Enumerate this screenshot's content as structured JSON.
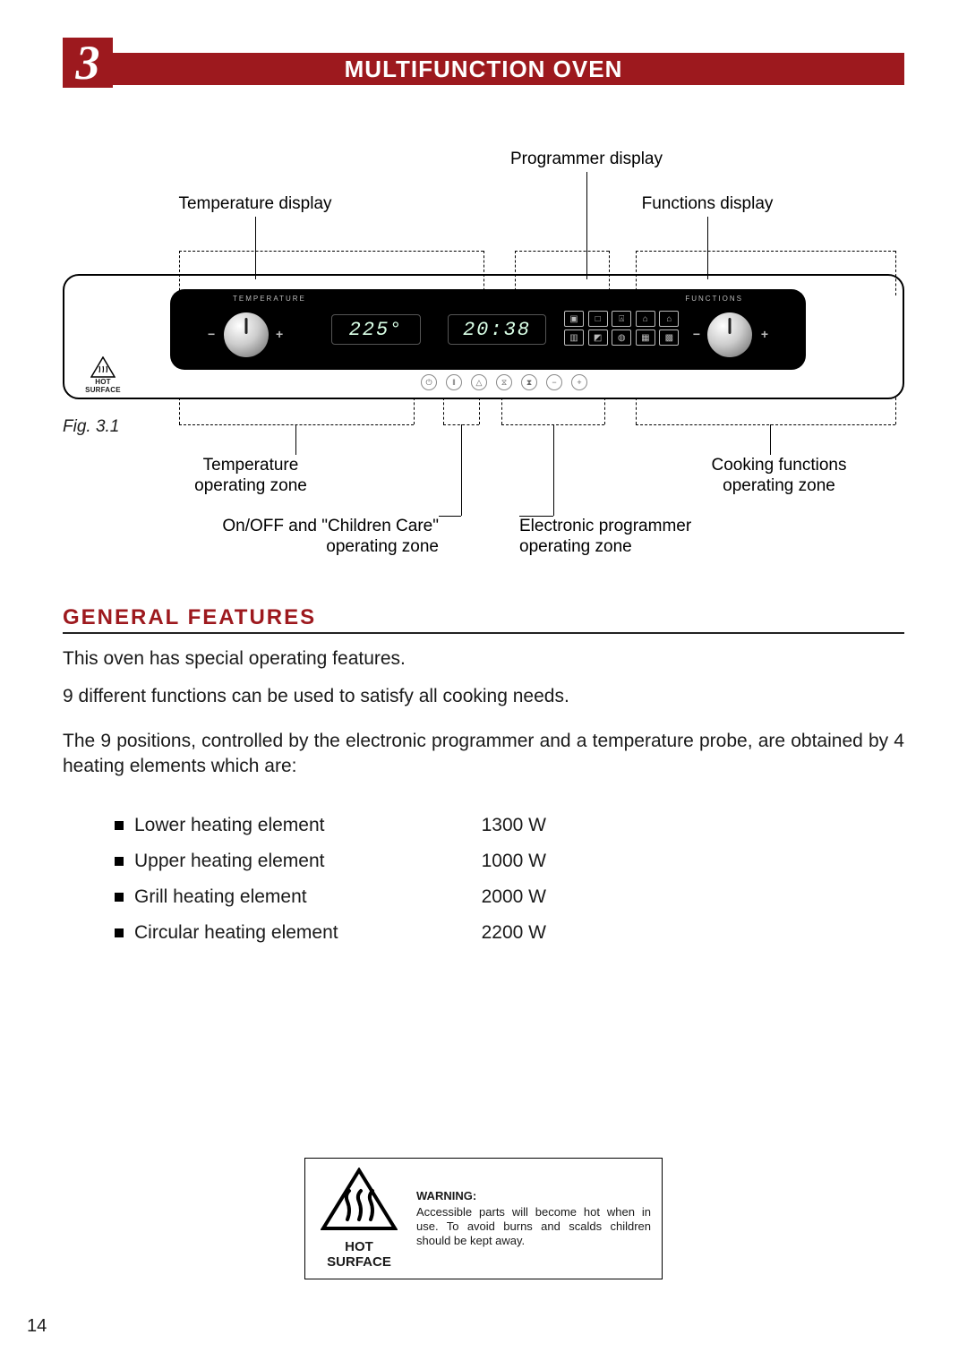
{
  "chapter": {
    "number": "3",
    "title": "MULTIFUNCTION  OVEN"
  },
  "page_number": "14",
  "colors": {
    "accent": "#9d191e",
    "panel_black": "#000000",
    "seg_text": "#d9ffe6"
  },
  "figure": {
    "caption": "Fig. 3.1",
    "labels": {
      "programmer_display": "Programmer display",
      "temperature_display": "Temperature display",
      "functions_display": "Functions display",
      "temperature_zone_l1": "Temperature",
      "temperature_zone_l2": "operating zone",
      "cooking_zone_l1": "Cooking functions",
      "cooking_zone_l2": "operating zone",
      "onoff_zone_l1": "On/OFF and \"Children Care\"",
      "onoff_zone_l2": "operating zone",
      "programmer_zone_l1": "Electronic programmer",
      "programmer_zone_l2": "operating zone"
    },
    "panel": {
      "temp_label": "TEMPERATURE",
      "func_label": "FUNCTIONS",
      "temp_value": "225°",
      "clock_value": "20:38",
      "hot_surface_small": "HOT SURFACE",
      "button_glyphs": [
        "⏻",
        "‖",
        "△",
        "⧖",
        "⧗",
        "−",
        "+"
      ],
      "func_glyphs": [
        "▣",
        "□",
        "⍓",
        "⌂",
        "⌂",
        "▥",
        "◩",
        "◍",
        "▦",
        "▩"
      ]
    }
  },
  "section": {
    "heading": "GENERAL  FEATURES"
  },
  "paragraphs": {
    "p1": "This oven has special operating features.",
    "p2": "9 different functions can be used to satisfy all cooking needs.",
    "p3": "The 9 positions, controlled by the electronic programmer and a temperature probe, are obtained by 4 heating elements which are:"
  },
  "elements": [
    {
      "name": "Lower heating element",
      "watts": "1300  W"
    },
    {
      "name": "Upper heating element",
      "watts": "1000  W"
    },
    {
      "name": "Grill heating element",
      "watts": "2000  W"
    },
    {
      "name": "Circular heating element",
      "watts": "2200  W"
    }
  ],
  "warning": {
    "icon_label": "HOT SURFACE",
    "title": "WARNING:",
    "text": "Accessible parts will become hot when in use. To avoid burns and scalds children should be kept away."
  }
}
